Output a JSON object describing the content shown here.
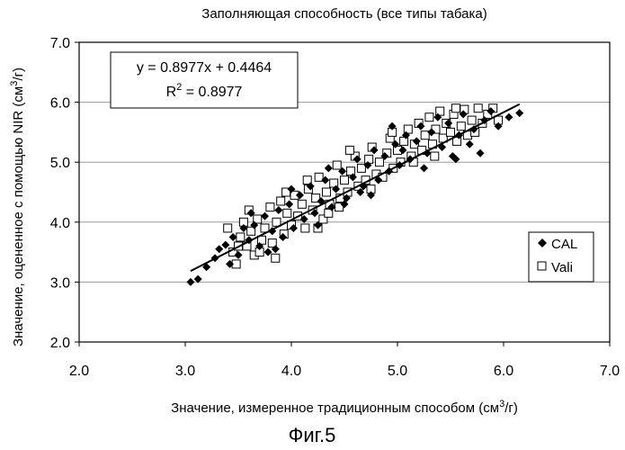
{
  "chart_data": {
    "type": "scatter",
    "title": "Заполняющая способность (все типы табака)",
    "xlabel": "Значение, измеренное традиционным способом (см³/г)",
    "xlabel_parts": {
      "main": "Значение, измеренное традиционным способом (см",
      "sup": "3",
      "end": "/г)"
    },
    "ylabel": "Значение, оцененное с помощью NIR (см³/г)",
    "ylabel_parts": {
      "main": "Значение, оцененное с помощью NIR (см",
      "sup": "3",
      "end": "/г)"
    },
    "xlim": [
      2.0,
      7.0
    ],
    "ylim": [
      2.0,
      7.0
    ],
    "x_ticks": [
      "2.0",
      "3.0",
      "4.0",
      "5.0",
      "6.0",
      "7.0"
    ],
    "y_ticks": [
      "2.0",
      "3.0",
      "4.0",
      "5.0",
      "6.0",
      "7.0"
    ],
    "grid": "horizontal",
    "legend_position": "right",
    "series": [
      {
        "name": "CAL",
        "marker": "filled-diamond",
        "color": "#000000",
        "points": [
          [
            3.05,
            3.0
          ],
          [
            3.12,
            3.05
          ],
          [
            3.2,
            3.25
          ],
          [
            3.28,
            3.4
          ],
          [
            3.32,
            3.55
          ],
          [
            3.38,
            3.62
          ],
          [
            3.42,
            3.3
          ],
          [
            3.45,
            3.75
          ],
          [
            3.5,
            3.45
          ],
          [
            3.55,
            3.9
          ],
          [
            3.6,
            3.7
          ],
          [
            3.65,
            3.95
          ],
          [
            3.7,
            3.6
          ],
          [
            3.75,
            4.1
          ],
          [
            3.78,
            3.5
          ],
          [
            3.82,
            3.85
          ],
          [
            3.88,
            4.2
          ],
          [
            3.92,
            3.75
          ],
          [
            3.98,
            4.3
          ],
          [
            4.02,
            3.9
          ],
          [
            4.08,
            4.45
          ],
          [
            4.12,
            4.05
          ],
          [
            4.18,
            4.6
          ],
          [
            4.22,
            4.15
          ],
          [
            4.28,
            4.35
          ],
          [
            4.32,
            4.7
          ],
          [
            4.38,
            4.25
          ],
          [
            4.42,
            4.55
          ],
          [
            4.48,
            4.85
          ],
          [
            4.52,
            4.4
          ],
          [
            4.58,
            4.75
          ],
          [
            4.62,
            5.05
          ],
          [
            4.68,
            4.6
          ],
          [
            4.72,
            4.95
          ],
          [
            4.78,
            5.2
          ],
          [
            4.82,
            4.7
          ],
          [
            4.88,
            5.1
          ],
          [
            4.92,
            4.85
          ],
          [
            4.98,
            5.3
          ],
          [
            5.02,
            4.95
          ],
          [
            5.08,
            5.45
          ],
          [
            5.12,
            5.05
          ],
          [
            5.18,
            5.35
          ],
          [
            5.22,
            5.6
          ],
          [
            5.28,
            5.15
          ],
          [
            5.32,
            5.5
          ],
          [
            5.38,
            5.75
          ],
          [
            5.42,
            5.25
          ],
          [
            5.48,
            5.65
          ],
          [
            5.52,
            5.1
          ],
          [
            5.58,
            5.45
          ],
          [
            5.62,
            5.8
          ],
          [
            5.68,
            5.3
          ],
          [
            5.72,
            5.55
          ],
          [
            5.78,
            5.15
          ],
          [
            5.82,
            5.7
          ],
          [
            5.88,
            5.85
          ],
          [
            5.95,
            5.6
          ],
          [
            6.05,
            5.75
          ],
          [
            6.15,
            5.82
          ],
          [
            4.0,
            4.55
          ],
          [
            4.25,
            3.95
          ],
          [
            4.5,
            4.3
          ],
          [
            4.75,
            4.45
          ],
          [
            4.95,
            5.6
          ],
          [
            5.25,
            4.9
          ],
          [
            3.62,
            4.15
          ],
          [
            3.85,
            3.55
          ],
          [
            4.35,
            4.9
          ],
          [
            4.65,
            4.5
          ],
          [
            5.05,
            5.2
          ],
          [
            5.55,
            5.05
          ]
        ]
      },
      {
        "name": "Vali",
        "marker": "open-square",
        "color": "#000000",
        "points": [
          [
            3.4,
            3.9
          ],
          [
            3.45,
            3.5
          ],
          [
            3.48,
            3.3
          ],
          [
            3.52,
            3.75
          ],
          [
            3.55,
            4.0
          ],
          [
            3.58,
            3.6
          ],
          [
            3.62,
            3.85
          ],
          [
            3.65,
            3.45
          ],
          [
            3.68,
            4.05
          ],
          [
            3.72,
            3.7
          ],
          [
            3.75,
            3.9
          ],
          [
            3.8,
            4.25
          ],
          [
            3.82,
            3.65
          ],
          [
            3.86,
            4.0
          ],
          [
            3.9,
            4.35
          ],
          [
            3.93,
            3.8
          ],
          [
            3.96,
            4.15
          ],
          [
            4.0,
            3.95
          ],
          [
            4.03,
            4.45
          ],
          [
            4.06,
            4.1
          ],
          [
            4.1,
            4.3
          ],
          [
            4.13,
            3.9
          ],
          [
            4.16,
            4.55
          ],
          [
            4.2,
            4.2
          ],
          [
            4.23,
            4.4
          ],
          [
            4.26,
            4.75
          ],
          [
            4.3,
            4.05
          ],
          [
            4.33,
            4.5
          ],
          [
            4.36,
            4.3
          ],
          [
            4.4,
            4.65
          ],
          [
            4.43,
            4.95
          ],
          [
            4.46,
            4.4
          ],
          [
            4.5,
            4.7
          ],
          [
            4.53,
            4.5
          ],
          [
            4.56,
            4.85
          ],
          [
            4.6,
            5.1
          ],
          [
            4.63,
            4.6
          ],
          [
            4.66,
            4.9
          ],
          [
            4.7,
            4.7
          ],
          [
            4.73,
            5.05
          ],
          [
            4.76,
            5.25
          ],
          [
            4.8,
            4.8
          ],
          [
            4.83,
            5.0
          ],
          [
            4.86,
            4.75
          ],
          [
            4.9,
            5.15
          ],
          [
            4.93,
            5.4
          ],
          [
            4.96,
            4.9
          ],
          [
            5.0,
            5.2
          ],
          [
            5.03,
            5.0
          ],
          [
            5.06,
            5.35
          ],
          [
            5.1,
            5.55
          ],
          [
            5.13,
            5.1
          ],
          [
            5.16,
            5.3
          ],
          [
            5.2,
            5.65
          ],
          [
            5.23,
            5.2
          ],
          [
            5.26,
            5.45
          ],
          [
            5.3,
            5.75
          ],
          [
            5.33,
            5.3
          ],
          [
            5.36,
            5.55
          ],
          [
            5.4,
            5.85
          ],
          [
            5.43,
            5.4
          ],
          [
            5.46,
            5.65
          ],
          [
            5.5,
            5.5
          ],
          [
            5.53,
            5.8
          ],
          [
            5.56,
            5.35
          ],
          [
            5.6,
            5.6
          ],
          [
            5.63,
            5.88
          ],
          [
            5.66,
            5.45
          ],
          [
            5.7,
            5.7
          ],
          [
            5.73,
            5.5
          ],
          [
            5.76,
            5.9
          ],
          [
            5.8,
            5.65
          ],
          [
            5.85,
            5.8
          ],
          [
            5.9,
            5.9
          ],
          [
            5.95,
            5.7
          ],
          [
            3.5,
            3.6
          ],
          [
            3.7,
            3.5
          ],
          [
            3.95,
            4.5
          ],
          [
            4.15,
            4.7
          ],
          [
            4.35,
            4.15
          ],
          [
            4.55,
            5.2
          ],
          [
            4.75,
            4.55
          ],
          [
            4.95,
            5.5
          ],
          [
            5.15,
            5.0
          ],
          [
            5.35,
            5.1
          ],
          [
            5.55,
            5.9
          ],
          [
            3.6,
            4.2
          ],
          [
            3.85,
            3.4
          ],
          [
            4.25,
            3.9
          ],
          [
            4.45,
            4.25
          ]
        ]
      }
    ],
    "trendline": {
      "slope": 0.8977,
      "intercept": 0.4464,
      "x_range": [
        3.05,
        6.15
      ]
    },
    "annotation": {
      "equation": "y = 0.8977x + 0.4464",
      "r2_base": "R",
      "r2_sup": "2",
      "r2_value": " = 0.8977"
    },
    "legend": [
      {
        "label": "CAL",
        "marker": "filled-diamond"
      },
      {
        "label": "Vali",
        "marker": "open-square"
      }
    ]
  },
  "figure_caption": "Фиг.5"
}
